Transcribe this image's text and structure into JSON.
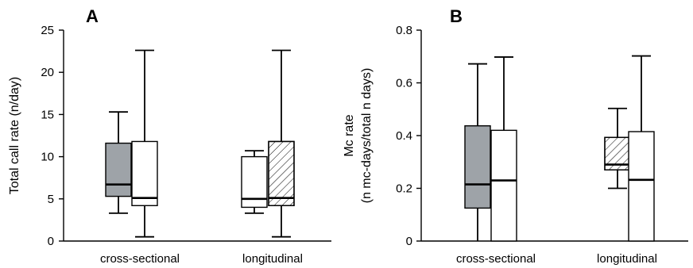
{
  "chart_data": [
    {
      "panel_label": "A",
      "type": "box",
      "ylabel": "Total call rate (n/day)",
      "ylim": [
        0,
        25
      ],
      "yticks": [
        0,
        5,
        10,
        15,
        20,
        25
      ],
      "categories": [
        "cross-sectional",
        "longitudinal"
      ],
      "boxes": [
        {
          "category": "cross-sectional",
          "fill": "gray",
          "whisker_low": 3.3,
          "q1": 5.3,
          "median": 6.7,
          "q3": 11.6,
          "whisker_high": 15.3
        },
        {
          "category": "cross-sectional",
          "fill": "white",
          "whisker_low": 0.5,
          "q1": 4.2,
          "median": 5.1,
          "q3": 11.8,
          "whisker_high": 22.6
        },
        {
          "category": "longitudinal",
          "fill": "white",
          "whisker_low": 3.3,
          "q1": 4.0,
          "median": 5.0,
          "q3": 10.0,
          "whisker_high": 10.7
        },
        {
          "category": "longitudinal",
          "fill": "hatched",
          "whisker_low": 0.5,
          "q1": 4.2,
          "median": 5.1,
          "q3": 11.8,
          "whisker_high": 22.6
        }
      ]
    },
    {
      "panel_label": "B",
      "type": "box",
      "ylabel_lines": [
        "Mc rate",
        "(n mc-days/total n days)"
      ],
      "ylim": [
        0,
        0.8
      ],
      "yticks": [
        "0",
        "0.2",
        "0.4",
        "0.6",
        "0.8"
      ],
      "categories": [
        "cross-sectional",
        "longitudinal"
      ],
      "boxes": [
        {
          "category": "cross-sectional",
          "fill": "gray",
          "whisker_low": 0,
          "q1": 0.125,
          "median": 0.215,
          "q3": 0.437,
          "whisker_high": 0.672
        },
        {
          "category": "cross-sectional",
          "fill": "white",
          "whisker_low": 0,
          "q1": 0,
          "median": 0.23,
          "q3": 0.42,
          "whisker_high": 0.698
        },
        {
          "category": "longitudinal",
          "fill": "hatched",
          "whisker_low": 0.2,
          "q1": 0.27,
          "median": 0.29,
          "q3": 0.393,
          "whisker_high": 0.503
        },
        {
          "category": "longitudinal",
          "fill": "white",
          "whisker_low": 0,
          "q1": 0,
          "median": 0.232,
          "q3": 0.415,
          "whisker_high": 0.702
        }
      ]
    }
  ],
  "colors": {
    "gray_fill": "#9ea3a8",
    "white_fill": "#ffffff",
    "stroke": "#000000"
  }
}
